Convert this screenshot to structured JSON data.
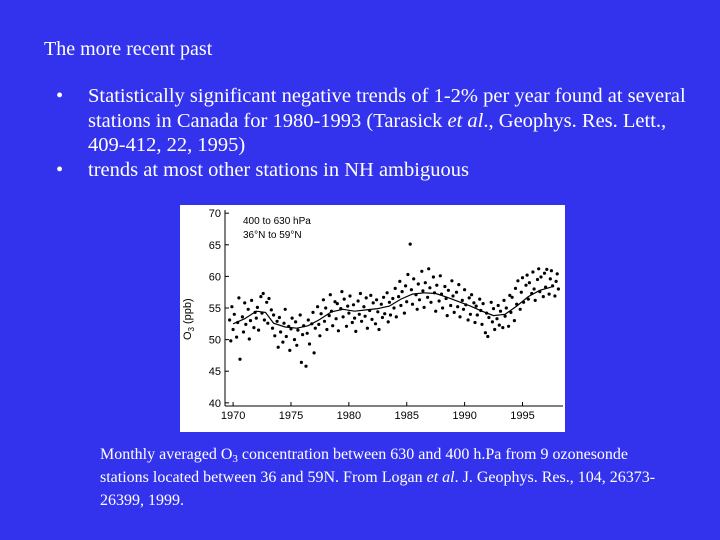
{
  "slide": {
    "title": "The more recent past",
    "bullets": [
      {
        "pre": "Statistically significant negative trends of 1-2% per year found at several stations in Canada  for 1980-1993 (Tarasick ",
        "italic": "et al",
        "post": "., Geophys. Res. Lett., 409-412, 22, 1995)"
      },
      {
        "pre": "trends at most other stations in NH ambiguous",
        "italic": "",
        "post": ""
      }
    ],
    "bullet_symbol": "•",
    "caption": {
      "p1": "Monthly averaged O",
      "sub": "3",
      "p2": " concentration between 630 and 400 h.Pa from 9 ozonesonde stations located between 36 and 59N.  From Logan ",
      "italic1": "et al",
      "p3": ". J. Geophys. Res., 104, 26373-26399,  1999."
    }
  },
  "colors": {
    "background": "#3333ee",
    "text": "#ffffff",
    "plot_bg": "#ffffff",
    "ink": "#000000"
  },
  "chart_data": {
    "type": "scatter",
    "ylabel_main": "O",
    "ylabel_sub": "3",
    "ylabel_unit": "(ppb)",
    "annotation_line1": "400 to 630 hPa",
    "annotation_line2": "36°N  to  59°N",
    "xlim": [
      1969.3,
      1998.5
    ],
    "ylim": [
      39.5,
      70.5
    ],
    "xticks": [
      1970,
      1975,
      1980,
      1985,
      1990,
      1995
    ],
    "xtick_labels": [
      "1970",
      "1975",
      "1980",
      "1985",
      "1990",
      "1995"
    ],
    "yticks": [
      40,
      45,
      50,
      55,
      60,
      65,
      70
    ],
    "ytick_labels": [
      "40",
      "45",
      "50",
      "55",
      "60",
      "65",
      "70"
    ],
    "trend": [
      {
        "x": 1970.0,
        "y": 52.5
      },
      {
        "x": 1971.0,
        "y": 53.3
      },
      {
        "x": 1972.0,
        "y": 54.5
      },
      {
        "x": 1972.8,
        "y": 54.3
      },
      {
        "x": 1973.5,
        "y": 52.6
      },
      {
        "x": 1974.5,
        "y": 52.0
      },
      {
        "x": 1975.5,
        "y": 51.8
      },
      {
        "x": 1976.5,
        "y": 52.2
      },
      {
        "x": 1977.5,
        "y": 53.2
      },
      {
        "x": 1978.5,
        "y": 54.4
      },
      {
        "x": 1979.5,
        "y": 54.8
      },
      {
        "x": 1980.5,
        "y": 54.5
      },
      {
        "x": 1981.5,
        "y": 54.7
      },
      {
        "x": 1982.5,
        "y": 54.9
      },
      {
        "x": 1983.5,
        "y": 55.3
      },
      {
        "x": 1984.5,
        "y": 56.4
      },
      {
        "x": 1985.5,
        "y": 57.2
      },
      {
        "x": 1986.5,
        "y": 57.4
      },
      {
        "x": 1987.5,
        "y": 57.3
      },
      {
        "x": 1988.5,
        "y": 56.7
      },
      {
        "x": 1989.5,
        "y": 56.0
      },
      {
        "x": 1990.5,
        "y": 55.3
      },
      {
        "x": 1991.5,
        "y": 54.5
      },
      {
        "x": 1992.5,
        "y": 53.8
      },
      {
        "x": 1993.5,
        "y": 54.0
      },
      {
        "x": 1994.5,
        "y": 55.3
      },
      {
        "x": 1995.5,
        "y": 56.8
      },
      {
        "x": 1996.5,
        "y": 57.8
      },
      {
        "x": 1997.5,
        "y": 58.3
      }
    ],
    "points": [
      {
        "x": 1969.7,
        "y": 53.1
      },
      {
        "x": 1969.8,
        "y": 49.8
      },
      {
        "x": 1969.9,
        "y": 55.2
      },
      {
        "x": 1970.0,
        "y": 51.6
      },
      {
        "x": 1970.1,
        "y": 54.0
      },
      {
        "x": 1970.3,
        "y": 50.4
      },
      {
        "x": 1970.4,
        "y": 52.7
      },
      {
        "x": 1970.5,
        "y": 56.6
      },
      {
        "x": 1970.6,
        "y": 46.9
      },
      {
        "x": 1970.8,
        "y": 53.6
      },
      {
        "x": 1970.9,
        "y": 51.2
      },
      {
        "x": 1971.0,
        "y": 55.8
      },
      {
        "x": 1971.1,
        "y": 52.4
      },
      {
        "x": 1971.3,
        "y": 54.8
      },
      {
        "x": 1971.4,
        "y": 50.1
      },
      {
        "x": 1971.5,
        "y": 53.0
      },
      {
        "x": 1971.6,
        "y": 56.2
      },
      {
        "x": 1971.8,
        "y": 51.9
      },
      {
        "x": 1971.9,
        "y": 54.3
      },
      {
        "x": 1972.0,
        "y": 53.4
      },
      {
        "x": 1972.1,
        "y": 55.1
      },
      {
        "x": 1972.2,
        "y": 51.5
      },
      {
        "x": 1972.4,
        "y": 56.8
      },
      {
        "x": 1972.5,
        "y": 54.2
      },
      {
        "x": 1972.6,
        "y": 57.3
      },
      {
        "x": 1972.7,
        "y": 53.1
      },
      {
        "x": 1972.9,
        "y": 55.9
      },
      {
        "x": 1973.0,
        "y": 52.6
      },
      {
        "x": 1973.1,
        "y": 56.5
      },
      {
        "x": 1973.3,
        "y": 54.7
      },
      {
        "x": 1973.4,
        "y": 51.8
      },
      {
        "x": 1973.5,
        "y": 53.9
      },
      {
        "x": 1973.6,
        "y": 50.6
      },
      {
        "x": 1973.8,
        "y": 52.9
      },
      {
        "x": 1973.9,
        "y": 48.8
      },
      {
        "x": 1974.0,
        "y": 53.5
      },
      {
        "x": 1974.1,
        "y": 51.2
      },
      {
        "x": 1974.3,
        "y": 49.6
      },
      {
        "x": 1974.4,
        "y": 52.6
      },
      {
        "x": 1974.5,
        "y": 54.8
      },
      {
        "x": 1974.6,
        "y": 50.5
      },
      {
        "x": 1974.8,
        "y": 52.1
      },
      {
        "x": 1974.9,
        "y": 48.3
      },
      {
        "x": 1975.0,
        "y": 51.7
      },
      {
        "x": 1975.1,
        "y": 53.4
      },
      {
        "x": 1975.3,
        "y": 50.0
      },
      {
        "x": 1975.4,
        "y": 52.8
      },
      {
        "x": 1975.5,
        "y": 49.1
      },
      {
        "x": 1975.6,
        "y": 51.5
      },
      {
        "x": 1975.8,
        "y": 53.9
      },
      {
        "x": 1975.9,
        "y": 46.4
      },
      {
        "x": 1976.0,
        "y": 50.8
      },
      {
        "x": 1976.1,
        "y": 52.2
      },
      {
        "x": 1976.3,
        "y": 45.8
      },
      {
        "x": 1976.4,
        "y": 51.0
      },
      {
        "x": 1976.5,
        "y": 53.1
      },
      {
        "x": 1976.6,
        "y": 49.3
      },
      {
        "x": 1976.8,
        "y": 52.5
      },
      {
        "x": 1976.9,
        "y": 54.3
      },
      {
        "x": 1977.0,
        "y": 47.9
      },
      {
        "x": 1977.1,
        "y": 51.8
      },
      {
        "x": 1977.3,
        "y": 55.2
      },
      {
        "x": 1977.4,
        "y": 52.4
      },
      {
        "x": 1977.5,
        "y": 50.6
      },
      {
        "x": 1977.6,
        "y": 54.1
      },
      {
        "x": 1977.8,
        "y": 56.3
      },
      {
        "x": 1977.9,
        "y": 52.9
      },
      {
        "x": 1978.0,
        "y": 55.0
      },
      {
        "x": 1978.1,
        "y": 51.6
      },
      {
        "x": 1978.3,
        "y": 53.8
      },
      {
        "x": 1978.4,
        "y": 57.1
      },
      {
        "x": 1978.5,
        "y": 54.5
      },
      {
        "x": 1978.6,
        "y": 52.2
      },
      {
        "x": 1978.8,
        "y": 56.0
      },
      {
        "x": 1978.9,
        "y": 53.3
      },
      {
        "x": 1979.0,
        "y": 55.7
      },
      {
        "x": 1979.1,
        "y": 51.4
      },
      {
        "x": 1979.3,
        "y": 54.9
      },
      {
        "x": 1979.4,
        "y": 57.6
      },
      {
        "x": 1979.5,
        "y": 53.6
      },
      {
        "x": 1979.6,
        "y": 56.4
      },
      {
        "x": 1979.8,
        "y": 52.1
      },
      {
        "x": 1979.9,
        "y": 55.3
      },
      {
        "x": 1980.0,
        "y": 54.2
      },
      {
        "x": 1980.1,
        "y": 56.9
      },
      {
        "x": 1980.3,
        "y": 52.7
      },
      {
        "x": 1980.4,
        "y": 55.5
      },
      {
        "x": 1980.5,
        "y": 53.4
      },
      {
        "x": 1980.6,
        "y": 51.3
      },
      {
        "x": 1980.8,
        "y": 56.1
      },
      {
        "x": 1980.9,
        "y": 54.0
      },
      {
        "x": 1981.0,
        "y": 57.3
      },
      {
        "x": 1981.1,
        "y": 52.9
      },
      {
        "x": 1981.3,
        "y": 55.2
      },
      {
        "x": 1981.4,
        "y": 53.7
      },
      {
        "x": 1981.5,
        "y": 56.6
      },
      {
        "x": 1981.6,
        "y": 51.8
      },
      {
        "x": 1981.8,
        "y": 54.6
      },
      {
        "x": 1981.9,
        "y": 57.0
      },
      {
        "x": 1982.0,
        "y": 53.2
      },
      {
        "x": 1982.1,
        "y": 55.8
      },
      {
        "x": 1982.3,
        "y": 52.5
      },
      {
        "x": 1982.4,
        "y": 56.3
      },
      {
        "x": 1982.5,
        "y": 54.4
      },
      {
        "x": 1982.6,
        "y": 51.6
      },
      {
        "x": 1982.8,
        "y": 55.6
      },
      {
        "x": 1982.9,
        "y": 53.5
      },
      {
        "x": 1983.0,
        "y": 56.7
      },
      {
        "x": 1983.1,
        "y": 54.1
      },
      {
        "x": 1983.3,
        "y": 57.4
      },
      {
        "x": 1983.4,
        "y": 52.8
      },
      {
        "x": 1983.5,
        "y": 55.9
      },
      {
        "x": 1983.6,
        "y": 53.9
      },
      {
        "x": 1983.8,
        "y": 56.5
      },
      {
        "x": 1983.9,
        "y": 55.0
      },
      {
        "x": 1984.0,
        "y": 58.1
      },
      {
        "x": 1984.1,
        "y": 53.6
      },
      {
        "x": 1984.3,
        "y": 56.8
      },
      {
        "x": 1984.4,
        "y": 59.2
      },
      {
        "x": 1984.5,
        "y": 55.4
      },
      {
        "x": 1984.6,
        "y": 57.6
      },
      {
        "x": 1984.8,
        "y": 54.2
      },
      {
        "x": 1984.9,
        "y": 58.5
      },
      {
        "x": 1985.0,
        "y": 56.0
      },
      {
        "x": 1985.1,
        "y": 60.3
      },
      {
        "x": 1985.3,
        "y": 65.1
      },
      {
        "x": 1985.4,
        "y": 57.9
      },
      {
        "x": 1985.5,
        "y": 55.6
      },
      {
        "x": 1985.6,
        "y": 59.6
      },
      {
        "x": 1985.8,
        "y": 57.1
      },
      {
        "x": 1985.9,
        "y": 54.8
      },
      {
        "x": 1986.0,
        "y": 58.8
      },
      {
        "x": 1986.1,
        "y": 56.3
      },
      {
        "x": 1986.3,
        "y": 60.8
      },
      {
        "x": 1986.4,
        "y": 57.7
      },
      {
        "x": 1986.5,
        "y": 55.1
      },
      {
        "x": 1986.6,
        "y": 59.0
      },
      {
        "x": 1986.8,
        "y": 56.7
      },
      {
        "x": 1986.9,
        "y": 61.2
      },
      {
        "x": 1987.0,
        "y": 58.2
      },
      {
        "x": 1987.1,
        "y": 55.9
      },
      {
        "x": 1987.3,
        "y": 59.9
      },
      {
        "x": 1987.4,
        "y": 57.4
      },
      {
        "x": 1987.5,
        "y": 54.5
      },
      {
        "x": 1987.6,
        "y": 58.6
      },
      {
        "x": 1987.8,
        "y": 56.1
      },
      {
        "x": 1987.9,
        "y": 60.1
      },
      {
        "x": 1988.0,
        "y": 57.2
      },
      {
        "x": 1988.1,
        "y": 55.0
      },
      {
        "x": 1988.3,
        "y": 58.4
      },
      {
        "x": 1988.4,
        "y": 56.5
      },
      {
        "x": 1988.5,
        "y": 53.8
      },
      {
        "x": 1988.6,
        "y": 57.8
      },
      {
        "x": 1988.8,
        "y": 55.4
      },
      {
        "x": 1988.9,
        "y": 59.3
      },
      {
        "x": 1989.0,
        "y": 56.9
      },
      {
        "x": 1989.1,
        "y": 54.3
      },
      {
        "x": 1989.3,
        "y": 57.5
      },
      {
        "x": 1989.4,
        "y": 55.2
      },
      {
        "x": 1989.5,
        "y": 58.7
      },
      {
        "x": 1989.6,
        "y": 53.6
      },
      {
        "x": 1989.8,
        "y": 56.2
      },
      {
        "x": 1989.9,
        "y": 54.8
      },
      {
        "x": 1990.0,
        "y": 57.9
      },
      {
        "x": 1990.1,
        "y": 55.5
      },
      {
        "x": 1990.3,
        "y": 53.1
      },
      {
        "x": 1990.4,
        "y": 56.6
      },
      {
        "x": 1990.5,
        "y": 54.0
      },
      {
        "x": 1990.6,
        "y": 57.1
      },
      {
        "x": 1990.8,
        "y": 55.8
      },
      {
        "x": 1990.9,
        "y": 52.7
      },
      {
        "x": 1991.0,
        "y": 55.3
      },
      {
        "x": 1991.1,
        "y": 53.9
      },
      {
        "x": 1991.3,
        "y": 56.4
      },
      {
        "x": 1991.4,
        "y": 54.6
      },
      {
        "x": 1991.5,
        "y": 52.4
      },
      {
        "x": 1991.6,
        "y": 55.7
      },
      {
        "x": 1991.8,
        "y": 51.1
      },
      {
        "x": 1991.9,
        "y": 54.2
      },
      {
        "x": 1992.0,
        "y": 50.5
      },
      {
        "x": 1992.1,
        "y": 53.5
      },
      {
        "x": 1992.3,
        "y": 55.9
      },
      {
        "x": 1992.4,
        "y": 52.8
      },
      {
        "x": 1992.5,
        "y": 54.9
      },
      {
        "x": 1992.6,
        "y": 51.6
      },
      {
        "x": 1992.8,
        "y": 53.3
      },
      {
        "x": 1992.9,
        "y": 55.4
      },
      {
        "x": 1993.0,
        "y": 52.3
      },
      {
        "x": 1993.1,
        "y": 54.5
      },
      {
        "x": 1993.3,
        "y": 51.9
      },
      {
        "x": 1993.4,
        "y": 56.2
      },
      {
        "x": 1993.5,
        "y": 53.7
      },
      {
        "x": 1993.6,
        "y": 55.0
      },
      {
        "x": 1993.8,
        "y": 52.1
      },
      {
        "x": 1993.9,
        "y": 57.0
      },
      {
        "x": 1994.0,
        "y": 54.3
      },
      {
        "x": 1994.1,
        "y": 56.7
      },
      {
        "x": 1994.3,
        "y": 53.0
      },
      {
        "x": 1994.4,
        "y": 58.1
      },
      {
        "x": 1994.5,
        "y": 55.6
      },
      {
        "x": 1994.6,
        "y": 59.3
      },
      {
        "x": 1994.8,
        "y": 54.8
      },
      {
        "x": 1994.9,
        "y": 57.5
      },
      {
        "x": 1995.0,
        "y": 59.8
      },
      {
        "x": 1995.1,
        "y": 55.9
      },
      {
        "x": 1995.3,
        "y": 58.6
      },
      {
        "x": 1995.4,
        "y": 60.2
      },
      {
        "x": 1995.5,
        "y": 56.4
      },
      {
        "x": 1995.6,
        "y": 59.0
      },
      {
        "x": 1995.8,
        "y": 57.3
      },
      {
        "x": 1995.9,
        "y": 60.7
      },
      {
        "x": 1996.0,
        "y": 58.0
      },
      {
        "x": 1996.1,
        "y": 56.2
      },
      {
        "x": 1996.3,
        "y": 59.5
      },
      {
        "x": 1996.4,
        "y": 61.2
      },
      {
        "x": 1996.5,
        "y": 57.6
      },
      {
        "x": 1996.6,
        "y": 59.9
      },
      {
        "x": 1996.8,
        "y": 56.8
      },
      {
        "x": 1996.9,
        "y": 60.5
      },
      {
        "x": 1997.0,
        "y": 58.3
      },
      {
        "x": 1997.1,
        "y": 61.1
      },
      {
        "x": 1997.3,
        "y": 57.2
      },
      {
        "x": 1997.4,
        "y": 59.6
      },
      {
        "x": 1997.5,
        "y": 60.9
      },
      {
        "x": 1997.6,
        "y": 58.5
      },
      {
        "x": 1997.8,
        "y": 56.9
      },
      {
        "x": 1997.9,
        "y": 59.2
      },
      {
        "x": 1998.0,
        "y": 60.4
      },
      {
        "x": 1998.1,
        "y": 58.0
      }
    ]
  }
}
